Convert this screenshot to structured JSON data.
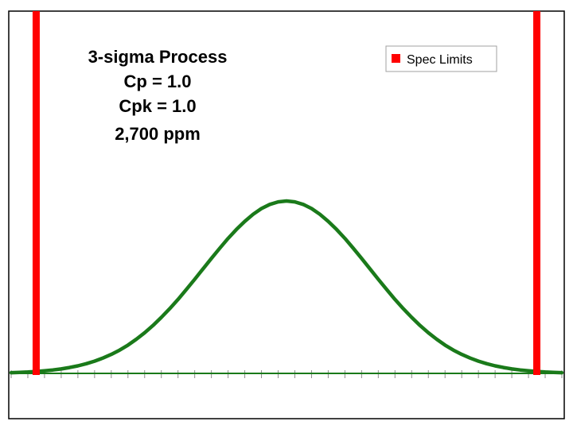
{
  "chart_data": {
    "type": "line",
    "title": "",
    "xlabel": "",
    "ylabel": "",
    "annotation_lines": [
      "3-sigma Process",
      "Cp = 1.0",
      "Cpk = 1.0",
      "2,700 ppm"
    ],
    "legend": {
      "placement": "top-right",
      "entries": [
        {
          "label": "Spec Limits",
          "color": "#ff0000"
        }
      ]
    },
    "xlim": [
      -3.3,
      3.3
    ],
    "ylim": [
      0,
      1.0
    ],
    "x_tick_step": 0.2,
    "grid": false,
    "series": [
      {
        "kind": "curve",
        "color": "#1a7a1a",
        "x": [
          -3.3,
          -3.2,
          -3.1,
          -3.0,
          -2.9,
          -2.8,
          -2.7,
          -2.6,
          -2.5,
          -2.4,
          -2.3,
          -2.2,
          -2.1,
          -2.0,
          -1.9,
          -1.8,
          -1.7,
          -1.6,
          -1.5,
          -1.4,
          -1.3,
          -1.2,
          -1.1,
          -1.0,
          -0.9,
          -0.8,
          -0.7,
          -0.6,
          -0.5,
          -0.4,
          -0.3,
          -0.2,
          -0.1,
          0.0,
          0.1,
          0.2,
          0.3,
          0.4,
          0.5,
          0.6,
          0.7,
          0.8,
          0.9,
          1.0,
          1.1,
          1.2,
          1.3,
          1.4,
          1.5,
          1.6,
          1.7,
          1.8,
          1.9,
          2.0,
          2.1,
          2.2,
          2.3,
          2.4,
          2.5,
          2.6,
          2.7,
          2.8,
          2.9,
          3.0,
          3.1,
          3.2,
          3.3
        ],
        "y": [
          0.004,
          0.006,
          0.008,
          0.011,
          0.015,
          0.02,
          0.026,
          0.034,
          0.044,
          0.056,
          0.071,
          0.089,
          0.11,
          0.135,
          0.164,
          0.198,
          0.236,
          0.278,
          0.325,
          0.375,
          0.429,
          0.487,
          0.546,
          0.607,
          0.667,
          0.726,
          0.783,
          0.835,
          0.882,
          0.923,
          0.956,
          0.98,
          0.995,
          1.0,
          0.995,
          0.98,
          0.956,
          0.923,
          0.882,
          0.835,
          0.783,
          0.726,
          0.667,
          0.607,
          0.546,
          0.487,
          0.429,
          0.375,
          0.325,
          0.278,
          0.236,
          0.198,
          0.164,
          0.135,
          0.11,
          0.089,
          0.071,
          0.056,
          0.044,
          0.034,
          0.026,
          0.02,
          0.015,
          0.011,
          0.008,
          0.006,
          0.004
        ]
      },
      {
        "kind": "vline",
        "name": "Spec Limits",
        "color": "#ff0000",
        "x": [
          -3.0,
          3.0
        ]
      }
    ]
  }
}
